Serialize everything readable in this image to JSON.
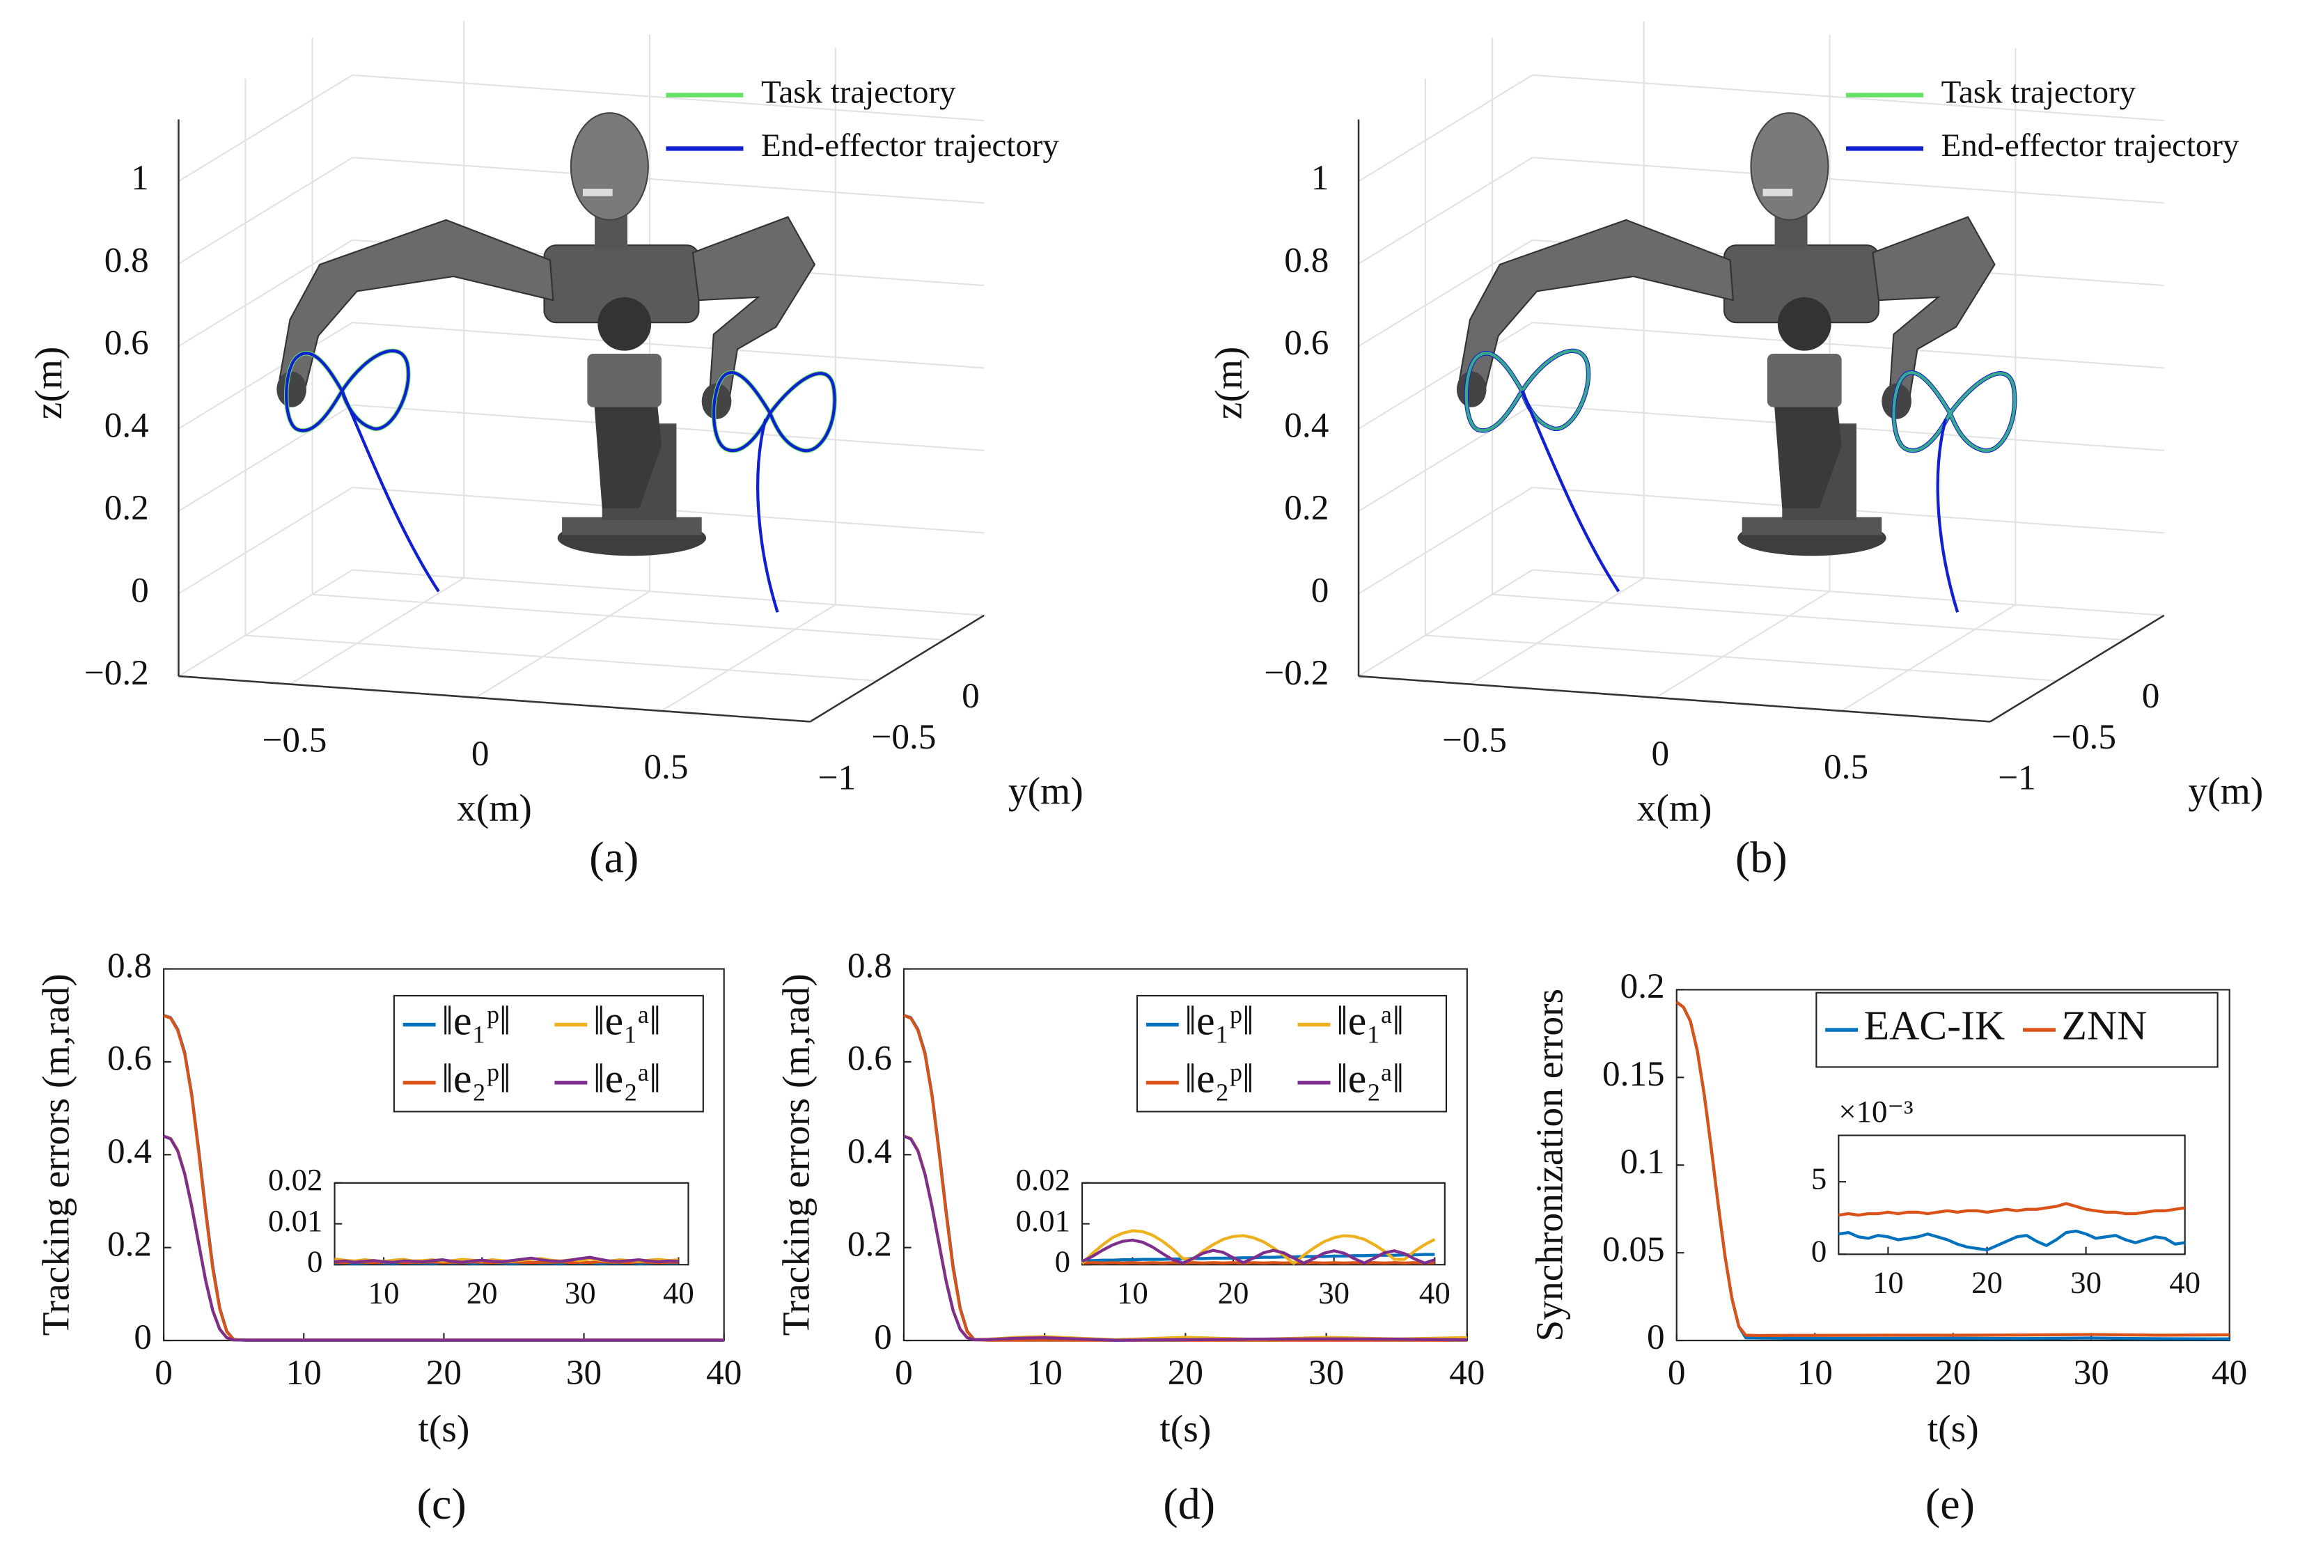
{
  "chart_data": [
    {
      "type": "line3d",
      "caption": "(a)",
      "xlabel": "x(m)",
      "ylabel": "y(m)",
      "zlabel": "z(m)",
      "xlim": [
        -0.8,
        0.9
      ],
      "ylim": [
        -1,
        0.3
      ],
      "zlim": [
        -0.2,
        1.15
      ],
      "xticks": [
        {
          "value": -0.5,
          "label": "−0.5"
        },
        0,
        0.5
      ],
      "yticks": [
        {
          "value": -1,
          "label": "−1"
        },
        {
          "value": -0.5,
          "label": "−0.5"
        },
        0
      ],
      "zticks": [
        {
          "value": -0.2,
          "label": "−0.2"
        },
        0,
        0.2,
        0.4,
        0.6,
        0.8,
        1
      ],
      "grid": true,
      "legend": [
        {
          "name": "Task trajectory",
          "color": "#66e066"
        },
        {
          "name": "End-effector trajectory",
          "color": "#1020d0"
        }
      ]
    },
    {
      "type": "line3d",
      "caption": "(b)",
      "xlabel": "x(m)",
      "ylabel": "y(m)",
      "zlabel": "z(m)",
      "xlim": [
        -0.8,
        0.9
      ],
      "ylim": [
        -1,
        0.3
      ],
      "zlim": [
        -0.2,
        1.15
      ],
      "xticks": [
        {
          "value": -0.5,
          "label": "−0.5"
        },
        0,
        0.5
      ],
      "yticks": [
        {
          "value": -1,
          "label": "−1"
        },
        {
          "value": -0.5,
          "label": "−0.5"
        },
        0
      ],
      "zticks": [
        {
          "value": -0.2,
          "label": "−0.2"
        },
        0,
        0.2,
        0.4,
        0.6,
        0.8,
        1
      ],
      "grid": true,
      "legend": [
        {
          "name": "Task trajectory",
          "color": "#66e066"
        },
        {
          "name": "End-effector trajectory",
          "color": "#1020d0"
        }
      ]
    },
    {
      "type": "line",
      "caption": "(c)",
      "xlabel": "t(s)",
      "ylabel": "Tracking errors (m,rad)",
      "x": [
        0,
        0.5,
        1,
        1.5,
        2,
        2.5,
        3,
        3.5,
        4,
        4.5,
        5,
        6,
        8,
        10,
        15,
        20,
        25,
        30,
        35,
        40
      ],
      "xlim": [
        0,
        40
      ],
      "ylim": [
        0,
        0.8
      ],
      "xticks": [
        0,
        10,
        20,
        30,
        40
      ],
      "yticks": [
        0,
        0.2,
        0.4,
        0.6,
        0.8
      ],
      "series": [
        {
          "name": "‖e₁ᵖ‖",
          "color": "#0072BD",
          "values": [
            0.7,
            0.695,
            0.67,
            0.62,
            0.53,
            0.41,
            0.28,
            0.16,
            0.07,
            0.02,
            0.002,
            0.0004,
            0.0004,
            0.0004,
            0.0004,
            0.0004,
            0.0004,
            0.0004,
            0.0004,
            0.0004
          ]
        },
        {
          "name": "‖e₂ᵖ‖",
          "color": "#D95319",
          "values": [
            0.7,
            0.694,
            0.668,
            0.617,
            0.527,
            0.405,
            0.275,
            0.155,
            0.068,
            0.019,
            0.002,
            0.0006,
            0.0006,
            0.0006,
            0.0006,
            0.0006,
            0.0006,
            0.0006,
            0.0006,
            0.0006
          ]
        },
        {
          "name": "‖e₁ᵃ‖",
          "color": "#EDB120",
          "values": [
            0.44,
            0.435,
            0.41,
            0.36,
            0.29,
            0.21,
            0.13,
            0.065,
            0.025,
            0.006,
            0.0012,
            0.001,
            0.001,
            0.001,
            0.001,
            0.001,
            0.001,
            0.001,
            0.001,
            0.001
          ]
        },
        {
          "name": "‖e₂ᵃ‖",
          "color": "#7E2F8E",
          "values": [
            0.44,
            0.434,
            0.408,
            0.358,
            0.288,
            0.208,
            0.128,
            0.064,
            0.024,
            0.006,
            0.001,
            0.0008,
            0.0008,
            0.0008,
            0.0008,
            0.0008,
            0.0008,
            0.0008,
            0.0008,
            0.0008
          ]
        }
      ],
      "inset": {
        "x": [
          5,
          6,
          7,
          8,
          9,
          10,
          11,
          12,
          13,
          14,
          15,
          16,
          17,
          18,
          19,
          20,
          21,
          22,
          23,
          24,
          25,
          26,
          27,
          28,
          29,
          30,
          31,
          32,
          33,
          34,
          35,
          36,
          37,
          38,
          39,
          40
        ],
        "xlim": [
          5,
          41
        ],
        "ylim": [
          0,
          0.02
        ],
        "xticks": [
          10,
          20,
          30,
          40
        ],
        "yticks": [
          0,
          0.01,
          0.02
        ],
        "series": [
          {
            "values": [
              0.0004,
              0.0005,
              0.0003,
              0.0004,
              0.0005,
              0.0004,
              0.0003,
              0.0005,
              0.0004,
              0.0004,
              0.0003,
              0.0005,
              0.0004,
              0.0005,
              0.0003,
              0.0004,
              0.0005,
              0.0004,
              0.0003,
              0.0004,
              0.0005,
              0.0004,
              0.0004,
              0.0003,
              0.0005,
              0.0004,
              0.0005,
              0.0003,
              0.0004,
              0.0004,
              0.0005,
              0.0003,
              0.0004,
              0.0005,
              0.0004,
              0.0004
            ]
          },
          {
            "values": [
              0.0006,
              0.0005,
              0.0007,
              0.0006,
              0.0005,
              0.0006,
              0.0007,
              0.0005,
              0.0006,
              0.0006,
              0.0007,
              0.0005,
              0.0006,
              0.0005,
              0.0007,
              0.0006,
              0.0005,
              0.0006,
              0.0007,
              0.0006,
              0.0005,
              0.0006,
              0.0006,
              0.0007,
              0.0005,
              0.0006,
              0.0005,
              0.0007,
              0.0006,
              0.0006,
              0.0005,
              0.0007,
              0.0006,
              0.0005,
              0.0006,
              0.0006
            ]
          },
          {
            "values": [
              0.0014,
              0.0011,
              0.0009,
              0.0012,
              0.001,
              0.0008,
              0.0011,
              0.0013,
              0.0009,
              0.001,
              0.0012,
              0.0008,
              0.001,
              0.0013,
              0.0011,
              0.0009,
              0.0012,
              0.001,
              0.0008,
              0.0011,
              0.0013,
              0.0015,
              0.0011,
              0.0009,
              0.0012,
              0.001,
              0.0014,
              0.0011,
              0.0009,
              0.0012,
              0.001,
              0.0008,
              0.0011,
              0.0013,
              0.001,
              0.0012
            ]
          },
          {
            "values": [
              0.0007,
              0.0009,
              0.0006,
              0.0008,
              0.001,
              0.0007,
              0.0006,
              0.0009,
              0.0008,
              0.0007,
              0.001,
              0.0012,
              0.0008,
              0.0006,
              0.0009,
              0.0011,
              0.0008,
              0.0007,
              0.001,
              0.0013,
              0.0016,
              0.0012,
              0.0009,
              0.0008,
              0.0011,
              0.0015,
              0.0018,
              0.0013,
              0.0009,
              0.0008,
              0.001,
              0.0012,
              0.0009,
              0.0007,
              0.0009,
              0.0008
            ]
          }
        ]
      }
    },
    {
      "type": "line",
      "caption": "(d)",
      "xlabel": "t(s)",
      "ylabel": "Tracking errors (m,rad)",
      "x": [
        0,
        0.5,
        1,
        1.5,
        2,
        2.5,
        3,
        3.5,
        4,
        4.5,
        5,
        6,
        8,
        10,
        15,
        20,
        25,
        30,
        35,
        40
      ],
      "xlim": [
        0,
        40
      ],
      "ylim": [
        0,
        0.8
      ],
      "xticks": [
        0,
        10,
        20,
        30,
        40
      ],
      "yticks": [
        0,
        0.2,
        0.4,
        0.6,
        0.8
      ],
      "series": [
        {
          "name": "‖e₁ᵖ‖",
          "color": "#0072BD",
          "values": [
            0.7,
            0.695,
            0.67,
            0.62,
            0.53,
            0.41,
            0.28,
            0.16,
            0.07,
            0.02,
            0.002,
            0.001,
            0.0011,
            0.0012,
            0.0014,
            0.0016,
            0.0019,
            0.0021,
            0.0023,
            0.0025
          ]
        },
        {
          "name": "‖e₂ᵖ‖",
          "color": "#D95319",
          "values": [
            0.7,
            0.694,
            0.668,
            0.617,
            0.527,
            0.405,
            0.275,
            0.155,
            0.068,
            0.019,
            0.002,
            0.0005,
            0.0005,
            0.0005,
            0.0005,
            0.0005,
            0.0005,
            0.0005,
            0.0005,
            0.0005
          ]
        },
        {
          "name": "‖e₁ᵃ‖",
          "color": "#EDB120",
          "values": [
            0.44,
            0.435,
            0.41,
            0.36,
            0.29,
            0.21,
            0.13,
            0.065,
            0.025,
            0.006,
            0.002,
            0.0027,
            0.0066,
            0.0083,
            0.0015,
            0.0069,
            0.0023,
            0.0066,
            0.0033,
            0.0062
          ]
        },
        {
          "name": "‖e₂ᵃ‖",
          "color": "#7E2F8E",
          "values": [
            0.44,
            0.434,
            0.408,
            0.358,
            0.288,
            0.208,
            0.128,
            0.064,
            0.024,
            0.006,
            0.0015,
            0.002,
            0.0048,
            0.006,
            0.0004,
            0.0017,
            0.0029,
            0.0034,
            0.0029,
            0.0012
          ]
        }
      ],
      "inset": {
        "x": [
          5,
          6,
          7,
          8,
          9,
          10,
          11,
          12,
          13,
          14,
          15,
          16,
          17,
          18,
          19,
          20,
          21,
          22,
          23,
          24,
          25,
          26,
          27,
          28,
          29,
          30,
          31,
          32,
          33,
          34,
          35,
          36,
          37,
          38,
          39,
          40
        ],
        "xlim": [
          5,
          41
        ],
        "ylim": [
          0,
          0.02
        ],
        "xticks": [
          10,
          20,
          30,
          40
        ],
        "yticks": [
          0,
          0.01,
          0.02
        ],
        "series": [
          {
            "values": [
              0.001,
              0.001,
              0.0011,
              0.0011,
              0.0012,
              0.0012,
              0.0013,
              0.0013,
              0.0013,
              0.0014,
              0.0014,
              0.0015,
              0.0015,
              0.0016,
              0.0016,
              0.0016,
              0.0017,
              0.0017,
              0.0018,
              0.0018,
              0.0019,
              0.0019,
              0.002,
              0.002,
              0.002,
              0.0021,
              0.0021,
              0.0022,
              0.0022,
              0.0023,
              0.0023,
              0.0023,
              0.0024,
              0.0024,
              0.0025,
              0.0025
            ]
          },
          {
            "values": [
              0.0004,
              0.0005,
              0.0004,
              0.0005,
              0.0004,
              0.0005,
              0.0004,
              0.0005,
              0.0004,
              0.0005,
              0.0004,
              0.0005,
              0.0004,
              0.0005,
              0.0004,
              0.0005,
              0.0004,
              0.0005,
              0.0004,
              0.0005,
              0.0004,
              0.0005,
              0.0004,
              0.0005,
              0.0004,
              0.0005,
              0.0004,
              0.0005,
              0.0004,
              0.0005,
              0.0004,
              0.0005,
              0.0004,
              0.0005,
              0.0004,
              0.0005
            ]
          },
          {
            "values": [
              0.0003,
              0.0027,
              0.0048,
              0.0066,
              0.0077,
              0.0083,
              0.0081,
              0.0072,
              0.0057,
              0.0038,
              0.0015,
              0.0013,
              0.0033,
              0.0049,
              0.0062,
              0.0069,
              0.0071,
              0.0066,
              0.0056,
              0.0041,
              0.0023,
              0.0003,
              0.0023,
              0.0041,
              0.0056,
              0.0066,
              0.0071,
              0.0069,
              0.0062,
              0.0049,
              0.0033,
              0.0013,
              0.0013,
              0.0033,
              0.0049,
              0.0062
            ]
          },
          {
            "values": [
              0.0008,
              0.002,
              0.0035,
              0.0048,
              0.0057,
              0.006,
              0.0055,
              0.0043,
              0.0027,
              0.0012,
              0.0004,
              0.0015,
              0.0028,
              0.0035,
              0.003,
              0.0017,
              0.0005,
              0.0016,
              0.0029,
              0.0035,
              0.0029,
              0.0016,
              0.0004,
              0.0015,
              0.0028,
              0.0034,
              0.0028,
              0.0015,
              0.0004,
              0.0016,
              0.0029,
              0.0034,
              0.0027,
              0.0014,
              0.0004,
              0.0012
            ]
          }
        ]
      }
    },
    {
      "type": "line",
      "caption": "(e)",
      "xlabel": "t(s)",
      "ylabel": "Synchronization errors",
      "x": [
        0,
        0.5,
        1,
        1.5,
        2,
        2.5,
        3,
        3.5,
        4,
        4.5,
        5,
        6,
        8,
        10,
        15,
        20,
        25,
        30,
        35,
        40
      ],
      "xlim": [
        0,
        40
      ],
      "ylim": [
        0,
        0.2
      ],
      "xticks": [
        0,
        10,
        20,
        30,
        40
      ],
      "yticks": [
        0,
        0.05,
        0.1,
        0.15,
        0.2
      ],
      "series": [
        {
          "name": "EAC-IK",
          "color": "#0072BD",
          "values": [
            0.193,
            0.19,
            0.182,
            0.165,
            0.14,
            0.11,
            0.078,
            0.048,
            0.024,
            0.008,
            0.0015,
            0.0014,
            0.0013,
            0.0012,
            0.0012,
            0.0013,
            0.0011,
            0.0014,
            0.001,
            0.0009
          ]
        },
        {
          "name": "ZNN",
          "color": "#D95319",
          "values": [
            0.193,
            0.19,
            0.182,
            0.165,
            0.14,
            0.11,
            0.078,
            0.048,
            0.024,
            0.008,
            0.003,
            0.0028,
            0.0029,
            0.0029,
            0.003,
            0.003,
            0.0031,
            0.0034,
            0.003,
            0.0032
          ]
        }
      ],
      "inset": {
        "x": [
          5,
          6,
          7,
          8,
          9,
          10,
          11,
          12,
          13,
          14,
          15,
          16,
          17,
          18,
          19,
          20,
          21,
          22,
          23,
          24,
          25,
          26,
          27,
          28,
          29,
          30,
          31,
          32,
          33,
          34,
          35,
          36,
          37,
          38,
          39,
          40
        ],
        "xlim": [
          5,
          40
        ],
        "ylim": [
          0,
          8.2
        ],
        "xticks": [
          10,
          20,
          30,
          40
        ],
        "yticks": [
          0,
          5
        ],
        "multiplier": "×10⁻³",
        "series": [
          {
            "values": [
              1.4,
              1.5,
              1.2,
              1.1,
              1.3,
              1.2,
              1.0,
              1.1,
              1.2,
              1.4,
              1.2,
              1.0,
              0.7,
              0.5,
              0.4,
              0.3,
              0.6,
              0.9,
              1.2,
              1.3,
              0.9,
              0.6,
              1.0,
              1.5,
              1.6,
              1.4,
              1.1,
              1.2,
              1.3,
              1.0,
              0.8,
              1.0,
              1.2,
              1.1,
              0.7,
              0.8
            ]
          },
          {
            "values": [
              2.7,
              2.8,
              2.7,
              2.8,
              2.8,
              2.9,
              2.8,
              2.9,
              2.9,
              2.8,
              2.9,
              3.0,
              2.9,
              3.0,
              3.0,
              2.9,
              3.0,
              3.1,
              3.0,
              3.1,
              3.1,
              3.2,
              3.3,
              3.5,
              3.3,
              3.1,
              3.0,
              2.9,
              2.9,
              2.8,
              2.8,
              2.9,
              3.0,
              3.0,
              3.1,
              3.2
            ]
          }
        ]
      }
    }
  ]
}
